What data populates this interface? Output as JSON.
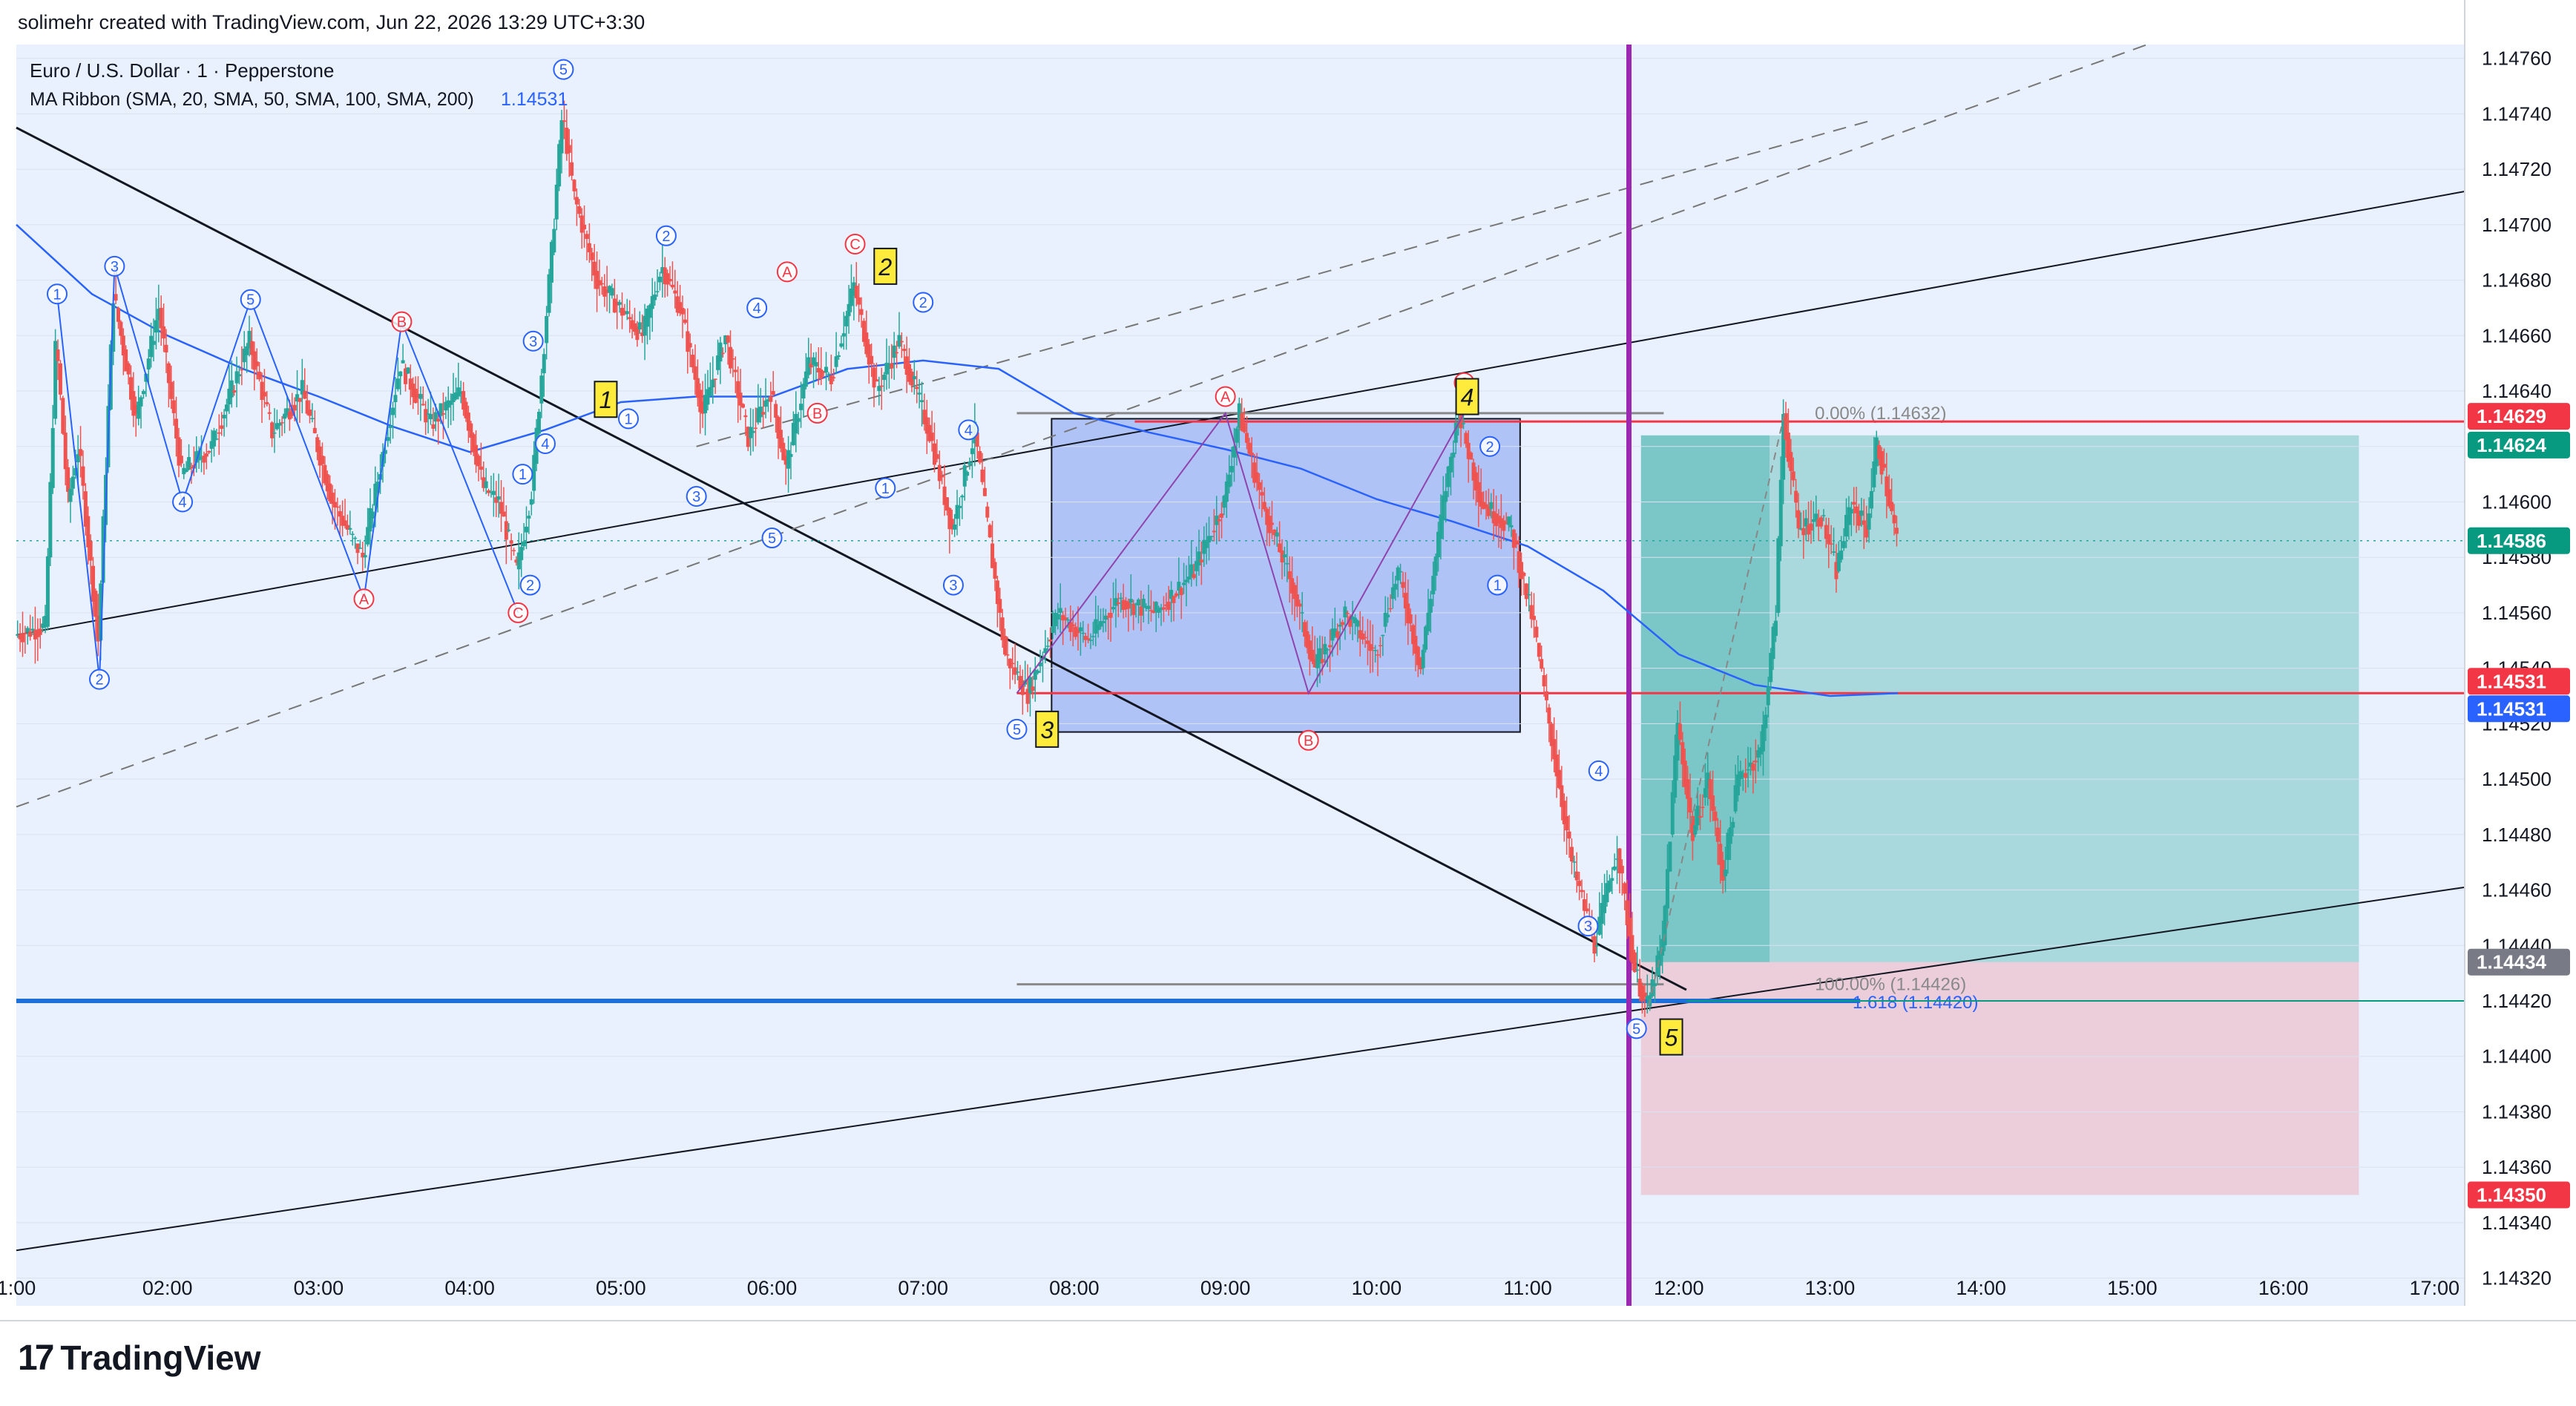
{
  "header": {
    "attribution": "solimehr created with TradingView.com, Jun 22, 2026 13:29 UTC+3:30"
  },
  "legend": {
    "symbol_line": "Euro / U.S. Dollar · 1 · Pepperstone",
    "indicator_line": "MA Ribbon (SMA, 20, SMA, 50, SMA, 100, SMA, 200)",
    "indicator_value": "1.14531"
  },
  "footer": {
    "logo_text": "TradingView",
    "logo_mark": "17"
  },
  "colors": {
    "background": "#ffffff",
    "chart_bg": "#e8f1fd",
    "up": "#26a69a",
    "down": "#ef5350",
    "ma": "#2962ff",
    "red_level": "#f23645",
    "green_level": "#089981",
    "purple": "#9c27b0",
    "box": "#7895f2",
    "long_green": "#26a69a",
    "short_red": "#f7525f",
    "wave_blue": "#2962ff",
    "wave_red": "#f23645",
    "label_yellow": "#ffeb3b"
  },
  "chart_data": {
    "type": "candlestick",
    "title": "Euro / U.S. Dollar · 1 · Pepperstone",
    "symbol": "EURUSD",
    "timeframe": "1",
    "broker": "Pepperstone",
    "ylim": [
      1.1431,
      1.14765
    ],
    "xlim_hours": [
      1.0,
      17.2
    ],
    "y_ticks": [
      "1.14320",
      "1.14340",
      "1.14360",
      "1.14380",
      "1.14400",
      "1.14420",
      "1.14440",
      "1.14460",
      "1.14480",
      "1.14500",
      "1.14520",
      "1.14540",
      "1.14560",
      "1.14580",
      "1.14600",
      "1.14620",
      "1.14640",
      "1.14660",
      "1.14680",
      "1.14700",
      "1.14720",
      "1.14740",
      "1.14760"
    ],
    "x_ticks": [
      {
        "h": 1,
        "label": "1:00"
      },
      {
        "h": 2,
        "label": "02:00"
      },
      {
        "h": 3,
        "label": "03:00"
      },
      {
        "h": 4,
        "label": "04:00"
      },
      {
        "h": 5,
        "label": "05:00"
      },
      {
        "h": 6,
        "label": "06:00"
      },
      {
        "h": 7,
        "label": "07:00"
      },
      {
        "h": 8,
        "label": "08:00"
      },
      {
        "h": 9,
        "label": "09:00"
      },
      {
        "h": 10,
        "label": "10:00"
      },
      {
        "h": 11,
        "label": "11:00"
      },
      {
        "h": 12,
        "label": "12:00"
      },
      {
        "h": 13,
        "label": "13:00"
      },
      {
        "h": 14,
        "label": "14:00"
      },
      {
        "h": 15,
        "label": "15:00"
      },
      {
        "h": 16,
        "label": "16:00"
      },
      {
        "h": 17,
        "label": "17:00"
      }
    ],
    "price_path": [
      [
        1.0,
        1.14552
      ],
      [
        1.2,
        1.14555
      ],
      [
        1.27,
        1.1466
      ],
      [
        1.35,
        1.146
      ],
      [
        1.42,
        1.1462
      ],
      [
        1.55,
        1.1455
      ],
      [
        1.65,
        1.14675
      ],
      [
        1.8,
        1.1463
      ],
      [
        1.95,
        1.1467
      ],
      [
        2.1,
        1.1461
      ],
      [
        2.3,
        1.1462
      ],
      [
        2.55,
        1.14658
      ],
      [
        2.7,
        1.14625
      ],
      [
        2.9,
        1.1464
      ],
      [
        3.1,
        1.146
      ],
      [
        3.3,
        1.1458
      ],
      [
        3.55,
        1.1465
      ],
      [
        3.75,
        1.14628
      ],
      [
        3.95,
        1.1464
      ],
      [
        4.1,
        1.14605
      ],
      [
        4.2,
        1.146
      ],
      [
        4.32,
        1.14575
      ],
      [
        4.42,
        1.14605
      ],
      [
        4.55,
        1.1469
      ],
      [
        4.62,
        1.1474
      ],
      [
        4.7,
        1.1471
      ],
      [
        4.85,
        1.1468
      ],
      [
        5.0,
        1.1467
      ],
      [
        5.15,
        1.1466
      ],
      [
        5.28,
        1.14685
      ],
      [
        5.4,
        1.1467
      ],
      [
        5.55,
        1.14632
      ],
      [
        5.7,
        1.1466
      ],
      [
        5.85,
        1.14623
      ],
      [
        6.0,
        1.1464
      ],
      [
        6.1,
        1.14612
      ],
      [
        6.25,
        1.1465
      ],
      [
        6.4,
        1.14645
      ],
      [
        6.55,
        1.14678
      ],
      [
        6.7,
        1.1464
      ],
      [
        6.85,
        1.14658
      ],
      [
        7.05,
        1.14625
      ],
      [
        7.2,
        1.1459
      ],
      [
        7.35,
        1.14625
      ],
      [
        7.55,
        1.14545
      ],
      [
        7.7,
        1.14531
      ],
      [
        7.9,
        1.1456
      ],
      [
        8.1,
        1.1455
      ],
      [
        8.3,
        1.14565
      ],
      [
        8.55,
        1.1456
      ],
      [
        8.8,
        1.14575
      ],
      [
        9.0,
        1.146
      ],
      [
        9.1,
        1.14632
      ],
      [
        9.25,
        1.146
      ],
      [
        9.45,
        1.1457
      ],
      [
        9.6,
        1.1454
      ],
      [
        9.8,
        1.1456
      ],
      [
        10.0,
        1.14545
      ],
      [
        10.15,
        1.14575
      ],
      [
        10.3,
        1.1454
      ],
      [
        10.45,
        1.146
      ],
      [
        10.55,
        1.14632
      ],
      [
        10.7,
        1.146
      ],
      [
        10.9,
        1.1459
      ],
      [
        11.05,
        1.14555
      ],
      [
        11.15,
        1.1452
      ],
      [
        11.3,
        1.1447
      ],
      [
        11.45,
        1.1444
      ],
      [
        11.6,
        1.14475
      ],
      [
        11.72,
        1.1443
      ],
      [
        11.8,
        1.14418
      ],
      [
        11.9,
        1.1444
      ],
      [
        12.0,
        1.1452
      ],
      [
        12.1,
        1.1448
      ],
      [
        12.2,
        1.145
      ],
      [
        12.3,
        1.14465
      ],
      [
        12.4,
        1.145
      ],
      [
        12.55,
        1.1451
      ],
      [
        12.65,
        1.1456
      ],
      [
        12.7,
        1.14632
      ],
      [
        12.8,
        1.1459
      ],
      [
        12.95,
        1.14595
      ],
      [
        13.05,
        1.14575
      ],
      [
        13.15,
        1.146
      ],
      [
        13.25,
        1.1459
      ],
      [
        13.32,
        1.14622
      ],
      [
        13.4,
        1.146
      ],
      [
        13.45,
        1.14586
      ]
    ],
    "moving_average": [
      [
        1.0,
        1.147
      ],
      [
        1.5,
        1.14675
      ],
      [
        2.0,
        1.1466
      ],
      [
        2.5,
        1.14648
      ],
      [
        3.0,
        1.14638
      ],
      [
        3.5,
        1.14627
      ],
      [
        4.0,
        1.14618
      ],
      [
        4.5,
        1.14626
      ],
      [
        5.0,
        1.14636
      ],
      [
        5.5,
        1.14638
      ],
      [
        6.0,
        1.14638
      ],
      [
        6.5,
        1.14648
      ],
      [
        7.0,
        1.14651
      ],
      [
        7.5,
        1.14648
      ],
      [
        8.0,
        1.14632
      ],
      [
        8.5,
        1.14625
      ],
      [
        9.0,
        1.14619
      ],
      [
        9.5,
        1.14612
      ],
      [
        10.0,
        1.14601
      ],
      [
        10.5,
        1.14593
      ],
      [
        11.0,
        1.14584
      ],
      [
        11.5,
        1.14568
      ],
      [
        12.0,
        1.14545
      ],
      [
        12.5,
        1.14534
      ],
      [
        13.0,
        1.1453
      ],
      [
        13.45,
        1.14531
      ]
    ],
    "levels": {
      "current_price": "1.14586",
      "red_high": "1.14629",
      "target_green": "1.14624",
      "red_mid": "1.14531",
      "ma_value": "1.14531",
      "entry_gray": "1.14434",
      "stop_red": "1.14350"
    },
    "fib": {
      "top_label": "0.00% (1.14632)",
      "bottom_label": "100.00% (1.14426)",
      "ext_label": "1.618 (1.14420)"
    },
    "trendlines": [
      {
        "name": "downtrend",
        "from": [
          1.0,
          1.14735
        ],
        "to": [
          12.05,
          1.14424
        ],
        "color": "#131722",
        "width": 3
      },
      {
        "name": "channel-upper",
        "from": [
          1.0,
          1.14552
        ],
        "to": [
          17.2,
          1.14712
        ],
        "color": "#131722",
        "width": 2
      },
      {
        "name": "channel-lower",
        "from": [
          1.0,
          1.1433
        ],
        "to": [
          17.2,
          1.14461
        ],
        "color": "#131722",
        "width": 2
      },
      {
        "name": "dashed-upper",
        "from": [
          5.5,
          1.1462
        ],
        "to": [
          13.3,
          1.14738
        ],
        "color": "#777777",
        "width": 2,
        "dash": true
      },
      {
        "name": "dashed-lower",
        "from": [
          1.0,
          1.1449
        ],
        "to": [
          15.1,
          1.14765
        ],
        "color": "#777777",
        "width": 2,
        "dash": true
      },
      {
        "name": "blue-support",
        "from": [
          1.0,
          1.1442
        ],
        "to": [
          13.2,
          1.1442
        ],
        "color": "#1e6fd9",
        "width": 6
      }
    ],
    "consolidation_box": {
      "x": [
        7.85,
        10.95
      ],
      "y": [
        1.14517,
        1.1463
      ]
    },
    "position": {
      "x": [
        11.75,
        16.5
      ],
      "entry": 1.14434,
      "target": 1.14624,
      "stop": 1.1435,
      "filled_until": 12.6
    },
    "vertical_line_h": 11.67,
    "wave_labels": [
      {
        "h": 1.27,
        "p": 1.14675,
        "t": "1",
        "c": "b"
      },
      {
        "h": 1.55,
        "p": 1.14536,
        "t": "2",
        "c": "b"
      },
      {
        "h": 1.65,
        "p": 1.14685,
        "t": "3",
        "c": "b"
      },
      {
        "h": 2.1,
        "p": 1.146,
        "t": "4",
        "c": "b"
      },
      {
        "h": 2.55,
        "p": 1.14673,
        "t": "5",
        "c": "b"
      },
      {
        "h": 3.3,
        "p": 1.14565,
        "t": "A",
        "c": "r"
      },
      {
        "h": 3.55,
        "p": 1.14665,
        "t": "B",
        "c": "r"
      },
      {
        "h": 4.32,
        "p": 1.1456,
        "t": "C",
        "c": "r"
      },
      {
        "h": 4.35,
        "p": 1.1461,
        "t": "1",
        "c": "b"
      },
      {
        "h": 4.4,
        "p": 1.1457,
        "t": "2",
        "c": "b"
      },
      {
        "h": 4.42,
        "p": 1.14658,
        "t": "3",
        "c": "b"
      },
      {
        "h": 4.5,
        "p": 1.14621,
        "t": "4",
        "c": "b"
      },
      {
        "h": 4.62,
        "p": 1.14756,
        "t": "5",
        "c": "b"
      },
      {
        "h": 5.05,
        "p": 1.1463,
        "t": "1",
        "c": "b"
      },
      {
        "h": 5.3,
        "p": 1.14696,
        "t": "2",
        "c": "b"
      },
      {
        "h": 5.5,
        "p": 1.14602,
        "t": "3",
        "c": "b"
      },
      {
        "h": 5.9,
        "p": 1.1467,
        "t": "4",
        "c": "b"
      },
      {
        "h": 6.0,
        "p": 1.14587,
        "t": "5",
        "c": "b"
      },
      {
        "h": 6.1,
        "p": 1.14683,
        "t": "A",
        "c": "r"
      },
      {
        "h": 6.3,
        "p": 1.14632,
        "t": "B",
        "c": "r"
      },
      {
        "h": 6.55,
        "p": 1.14693,
        "t": "C",
        "c": "r"
      },
      {
        "h": 6.75,
        "p": 1.14605,
        "t": "1",
        "c": "b"
      },
      {
        "h": 7.0,
        "p": 1.14672,
        "t": "2",
        "c": "b"
      },
      {
        "h": 7.2,
        "p": 1.1457,
        "t": "3",
        "c": "b"
      },
      {
        "h": 7.3,
        "p": 1.14626,
        "t": "4",
        "c": "b"
      },
      {
        "h": 7.62,
        "p": 1.14518,
        "t": "5",
        "c": "b"
      },
      {
        "h": 9.0,
        "p": 1.14638,
        "t": "A",
        "c": "r"
      },
      {
        "h": 9.55,
        "p": 1.14514,
        "t": "B",
        "c": "r"
      },
      {
        "h": 10.58,
        "p": 1.14643,
        "t": "C",
        "c": "r"
      },
      {
        "h": 10.75,
        "p": 1.1462,
        "t": "2",
        "c": "b"
      },
      {
        "h": 10.8,
        "p": 1.1457,
        "t": "1",
        "c": "b"
      },
      {
        "h": 11.4,
        "p": 1.14447,
        "t": "3",
        "c": "b"
      },
      {
        "h": 11.47,
        "p": 1.14503,
        "t": "4",
        "c": "b"
      },
      {
        "h": 11.72,
        "p": 1.1441,
        "t": "5",
        "c": "b"
      }
    ],
    "major_labels": [
      {
        "h": 4.9,
        "p": 1.14637,
        "t": "1"
      },
      {
        "h": 6.75,
        "p": 1.14685,
        "t": "2"
      },
      {
        "h": 7.82,
        "p": 1.14518,
        "t": "3"
      },
      {
        "h": 10.6,
        "p": 1.14638,
        "t": "4"
      },
      {
        "h": 11.95,
        "p": 1.14407,
        "t": "5"
      }
    ]
  }
}
